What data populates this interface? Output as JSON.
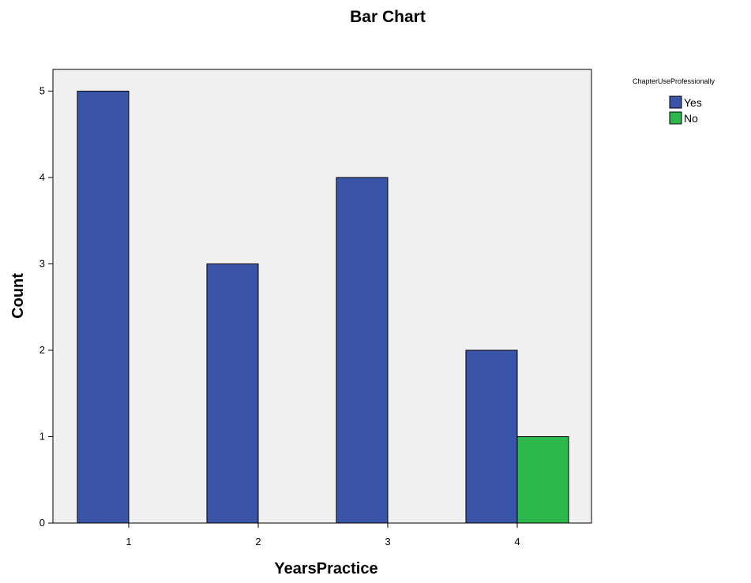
{
  "chart_data": {
    "type": "bar",
    "title": "Bar Chart",
    "xlabel": "YearsPractice",
    "ylabel": "Count",
    "categories": [
      "1",
      "2",
      "3",
      "4"
    ],
    "y_ticks": [
      "0",
      "1",
      "2",
      "3",
      "4",
      "5"
    ],
    "ylim": [
      0,
      5.5
    ],
    "grid": false,
    "legend": {
      "title": "ChapterUseProfessionally",
      "placement": "top-right, outside plot"
    },
    "series": [
      {
        "name": "Yes",
        "color": "#3a54a8",
        "values": [
          5,
          3,
          4,
          2
        ]
      },
      {
        "name": "No",
        "color": "#2db84b",
        "values": [
          0,
          0,
          0,
          1
        ]
      }
    ],
    "plot_background": "#f0f0f0"
  }
}
